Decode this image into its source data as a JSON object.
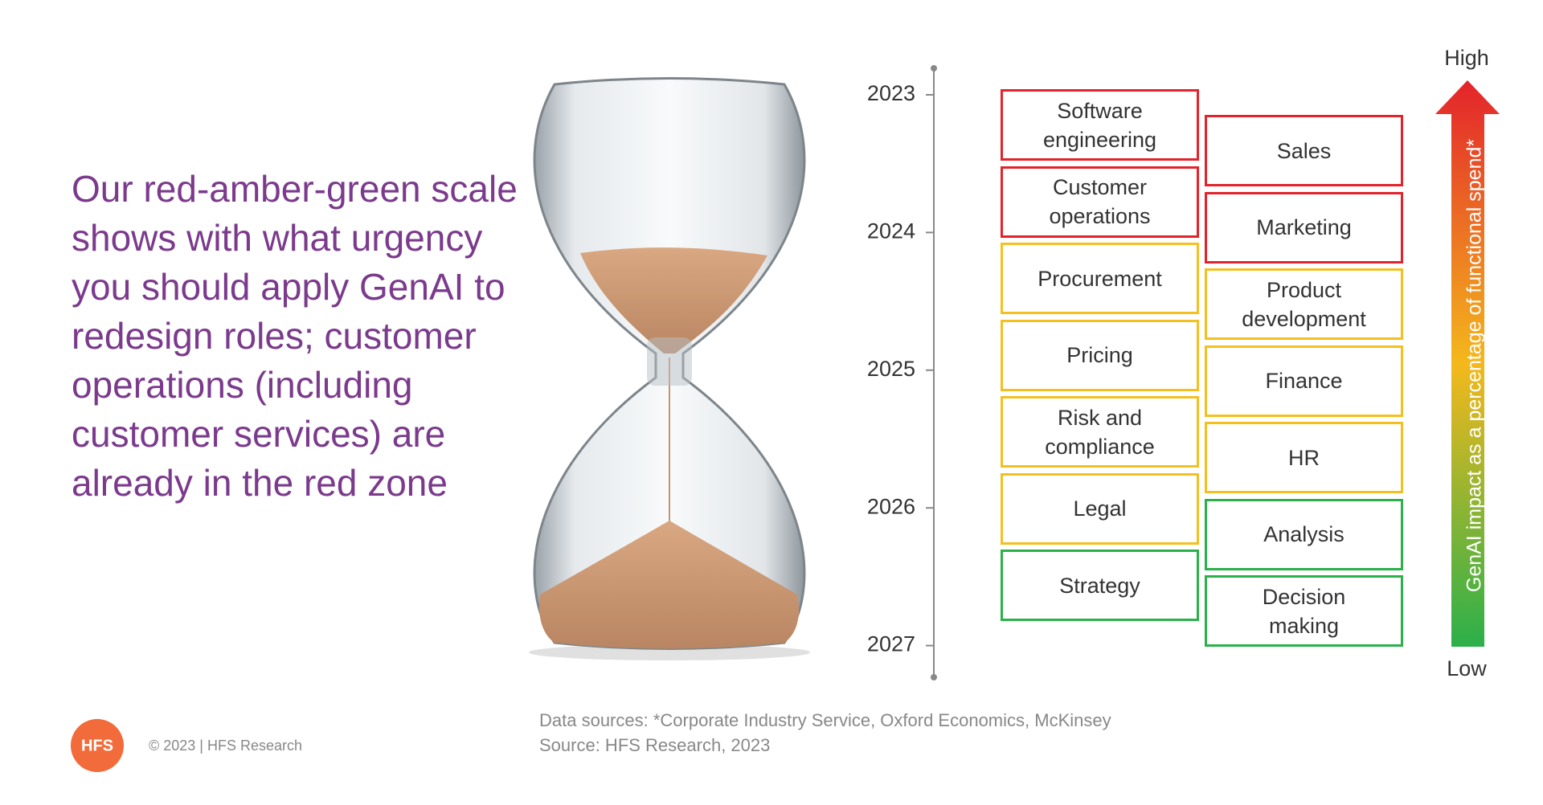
{
  "headline": "Our red-amber-green scale shows with what urgency you should apply GenAI to redesign roles; customer operations (including customer services) are already in the red zone",
  "timeline": {
    "years": [
      "2023",
      "2024",
      "2025",
      "2026",
      "2027"
    ]
  },
  "columns": [
    {
      "items": [
        {
          "label": "Software engineering",
          "color": "#e3232b"
        },
        {
          "label": "Customer operations",
          "color": "#e3232b"
        },
        {
          "label": "Procurement",
          "color": "#f4c020"
        },
        {
          "label": "Pricing",
          "color": "#f4c020"
        },
        {
          "label": "Risk and compliance",
          "color": "#f4c020"
        },
        {
          "label": "Legal",
          "color": "#f4c020"
        },
        {
          "label": "Strategy",
          "color": "#2bb04a"
        }
      ]
    },
    {
      "items": [
        {
          "label": "Sales",
          "color": "#e3232b"
        },
        {
          "label": "Marketing",
          "color": "#e3232b"
        },
        {
          "label": "Product development",
          "color": "#f4c020"
        },
        {
          "label": "Finance",
          "color": "#f4c020"
        },
        {
          "label": "HR",
          "color": "#f4c020"
        },
        {
          "label": "Analysis",
          "color": "#2bb04a"
        },
        {
          "label": "Decision making",
          "color": "#2bb04a"
        }
      ]
    }
  ],
  "scale": {
    "high": "High",
    "low": "Low",
    "label": "GenAI impact as a percentage of functional spend*"
  },
  "sources": [
    "Data sources: *Corporate Industry Service, Oxford Economics, McKinsey",
    "Source: HFS Research, 2023"
  ],
  "footer": {
    "logo": "HFS",
    "copyright": "© 2023 | HFS Research"
  }
}
